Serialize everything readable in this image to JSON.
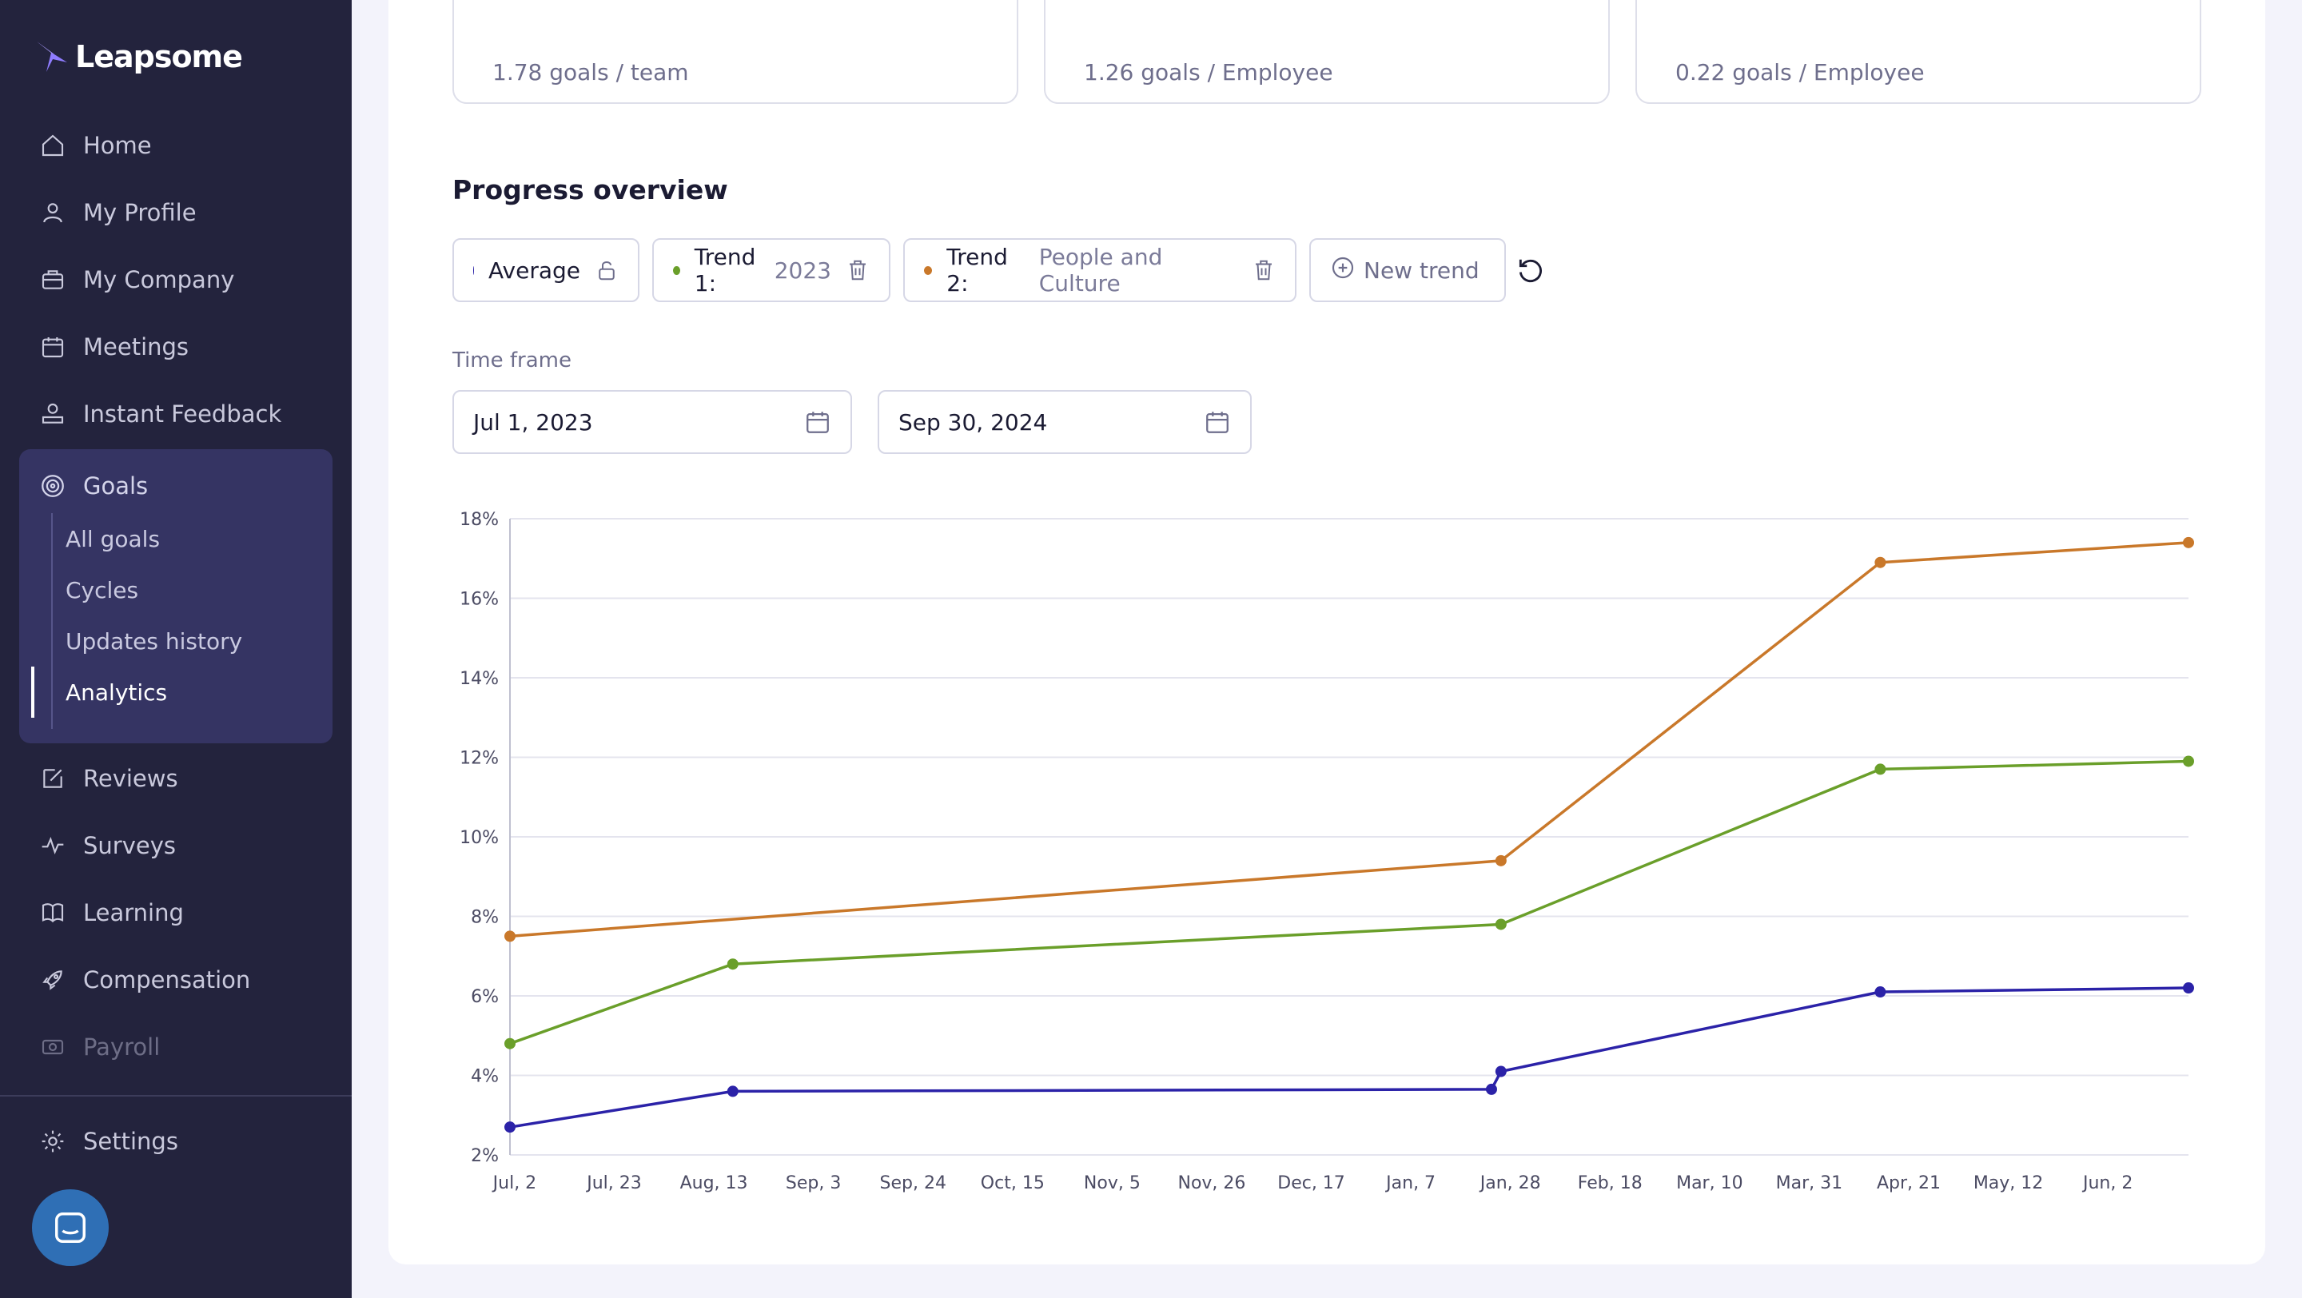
{
  "brand": {
    "name": "Leapsome"
  },
  "sidebar": {
    "items": [
      {
        "label": "Home",
        "icon": "home-icon"
      },
      {
        "label": "My Profile",
        "icon": "user-icon"
      },
      {
        "label": "My Company",
        "icon": "briefcase-icon"
      },
      {
        "label": "Meetings",
        "icon": "calendar-icon"
      },
      {
        "label": "Instant Feedback",
        "icon": "feedback-icon"
      },
      {
        "label": "Goals",
        "icon": "target-icon"
      },
      {
        "label": "Reviews",
        "icon": "edit-icon"
      },
      {
        "label": "Surveys",
        "icon": "pulse-icon"
      },
      {
        "label": "Learning",
        "icon": "book-icon"
      },
      {
        "label": "Compensation",
        "icon": "rocket-icon"
      },
      {
        "label": "Payroll",
        "icon": "money-icon"
      },
      {
        "label": "Settings",
        "icon": "gear-icon"
      }
    ],
    "goals_sub": [
      "All goals",
      "Cycles",
      "Updates history",
      "Analytics"
    ],
    "active_sub": "Analytics"
  },
  "stats": [
    "1.78 goals / team",
    "1.26 goals / Employee",
    "0.22 goals / Employee"
  ],
  "progress": {
    "title": "Progress overview",
    "chips": [
      {
        "label": "Average",
        "value": "",
        "color": "#2b22a8"
      },
      {
        "label": "Trend 1:",
        "value": "2023",
        "color": "#6a9f2a"
      },
      {
        "label": "Trend 2:",
        "value": "People and Culture",
        "color": "#c9782a"
      }
    ],
    "new_trend": "New trend",
    "timeframe_label": "Time frame",
    "start_date": "Jul 1, 2023",
    "end_date": "Sep 30, 2024"
  },
  "chart_data": {
    "type": "line",
    "x_ticks": [
      "Jul, 2",
      "Jul, 23",
      "Aug, 13",
      "Sep, 3",
      "Sep, 24",
      "Oct, 15",
      "Nov, 5",
      "Nov, 26",
      "Dec, 17",
      "Jan, 7",
      "Jan, 28",
      "Feb, 18",
      "Mar, 10",
      "Mar, 31",
      "Apr, 21",
      "May, 12",
      "Jun, 2"
    ],
    "y_ticks": [
      "2%",
      "4%",
      "6%",
      "8%",
      "10%",
      "12%",
      "14%",
      "16%",
      "18%"
    ],
    "ylim": [
      2,
      18
    ],
    "xlim": [
      "2023-07-01",
      "2024-06-19"
    ],
    "series": [
      {
        "color": "#c9782a",
        "points": [
          {
            "x": "2023-07-01",
            "y": 7.5
          },
          {
            "x": "2024-01-26",
            "y": 9.4
          },
          {
            "x": "2024-04-15",
            "y": 16.9
          },
          {
            "x": "2024-06-19",
            "y": 17.4
          }
        ]
      },
      {
        "color": "#6a9f2a",
        "points": [
          {
            "x": "2023-07-01",
            "y": 4.8
          },
          {
            "x": "2023-08-17",
            "y": 6.8
          },
          {
            "x": "2024-01-26",
            "y": 7.8
          },
          {
            "x": "2024-04-15",
            "y": 11.7
          },
          {
            "x": "2024-06-19",
            "y": 11.9
          }
        ]
      },
      {
        "color": "#2b22a8",
        "points": [
          {
            "x": "2023-07-01",
            "y": 2.7
          },
          {
            "x": "2023-08-17",
            "y": 3.6
          },
          {
            "x": "2024-01-24",
            "y": 3.65
          },
          {
            "x": "2024-01-26",
            "y": 4.1
          },
          {
            "x": "2024-04-15",
            "y": 6.1
          },
          {
            "x": "2024-06-19",
            "y": 6.2
          }
        ]
      }
    ]
  }
}
